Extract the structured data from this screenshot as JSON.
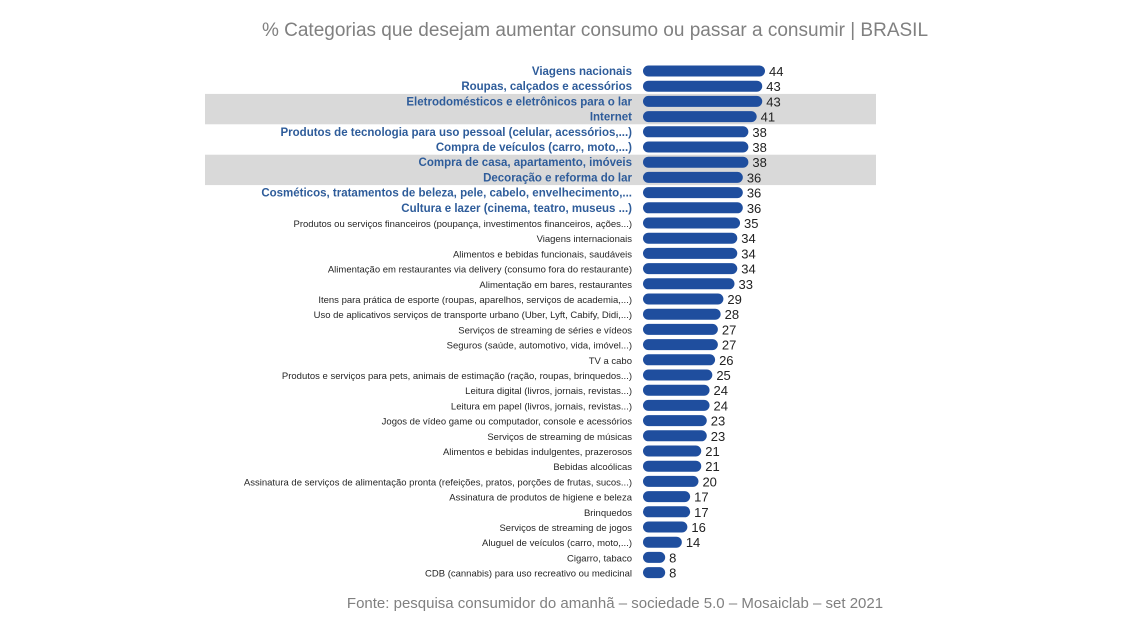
{
  "title": "% Categorias que desejam aumentar consumo ou passar a consumir |  BRASIL",
  "source": "Fonte: pesquisa consumidor do amanhã – sociedade 5.0 – Mosaiclab – set 2021",
  "colors": {
    "bar": "#1f4e9e",
    "highlight_text": "#2e5c9a",
    "label_text": "#262626",
    "band": "#d9d9d9",
    "value_text": "#222222"
  },
  "chart_data": {
    "type": "bar",
    "orientation": "horizontal",
    "title": "% Categorias que desejam aumentar consumo ou passar a consumir |  BRASIL",
    "xlim": [
      0,
      44
    ],
    "grid": false,
    "legend": "none",
    "categories": [
      "Viagens nacionais",
      "Roupas, calçados e acessórios",
      "Eletrodomésticos e eletrônicos para o lar",
      "Internet",
      "Produtos de tecnologia para uso pessoal (celular, acessórios,...)",
      "Compra de veículos (carro, moto,...)",
      "Compra de casa, apartamento, imóveis",
      "Decoração e reforma do lar",
      "Cosméticos, tratamentos de beleza, pele, cabelo, envelhecimento,...",
      "Cultura e lazer (cinema, teatro, museus ...)",
      "Produtos ou serviços financeiros (poupança, investimentos financeiros, ações...)",
      "Viagens internacionais",
      "Alimentos e bebidas funcionais, saudáveis",
      "Alimentação em restaurantes via delivery (consumo fora do restaurante)",
      "Alimentação em bares, restaurantes",
      "Itens para prática de esporte (roupas, aparelhos, serviços de academia,...)",
      "Uso de aplicativos serviços de transporte urbano (Uber, Lyft, Cabify, Didi,...)",
      "Serviços de streaming de séries e vídeos",
      "Seguros (saúde, automotivo, vida, imóvel...)",
      "TV a cabo",
      "Produtos e serviços para pets, animais de estimação (ração, roupas, brinquedos...)",
      "Leitura digital (livros, jornais, revistas...)",
      "Leitura em papel (livros, jornais, revistas...)",
      "Jogos de vídeo game ou computador, console e acessórios",
      "Serviços de streaming de músicas",
      "Alimentos e bebidas indulgentes, prazerosos",
      "Bebidas alcoólicas",
      "Assinatura de serviços de alimentação pronta (refeições, pratos, porções de frutas, sucos...)",
      "Assinatura de produtos de higiene e beleza",
      "Brinquedos",
      "Serviços de streaming de jogos",
      "Aluguel de veículos (carro, moto,...)",
      "Cigarro, tabaco",
      "CDB (cannabis) para uso recreativo ou medicinal"
    ],
    "values": [
      44,
      43,
      43,
      41,
      38,
      38,
      38,
      36,
      36,
      36,
      35,
      34,
      34,
      34,
      33,
      29,
      28,
      27,
      27,
      26,
      25,
      24,
      24,
      23,
      23,
      21,
      21,
      20,
      17,
      17,
      16,
      14,
      8,
      8
    ],
    "highlighted": [
      true,
      true,
      true,
      true,
      true,
      true,
      true,
      true,
      true,
      true,
      false,
      false,
      false,
      false,
      false,
      false,
      false,
      false,
      false,
      false,
      false,
      false,
      false,
      false,
      false,
      false,
      false,
      false,
      false,
      false,
      false,
      false,
      false,
      false
    ],
    "shaded_bands": [
      [
        2,
        3
      ],
      [
        6,
        7
      ]
    ]
  }
}
